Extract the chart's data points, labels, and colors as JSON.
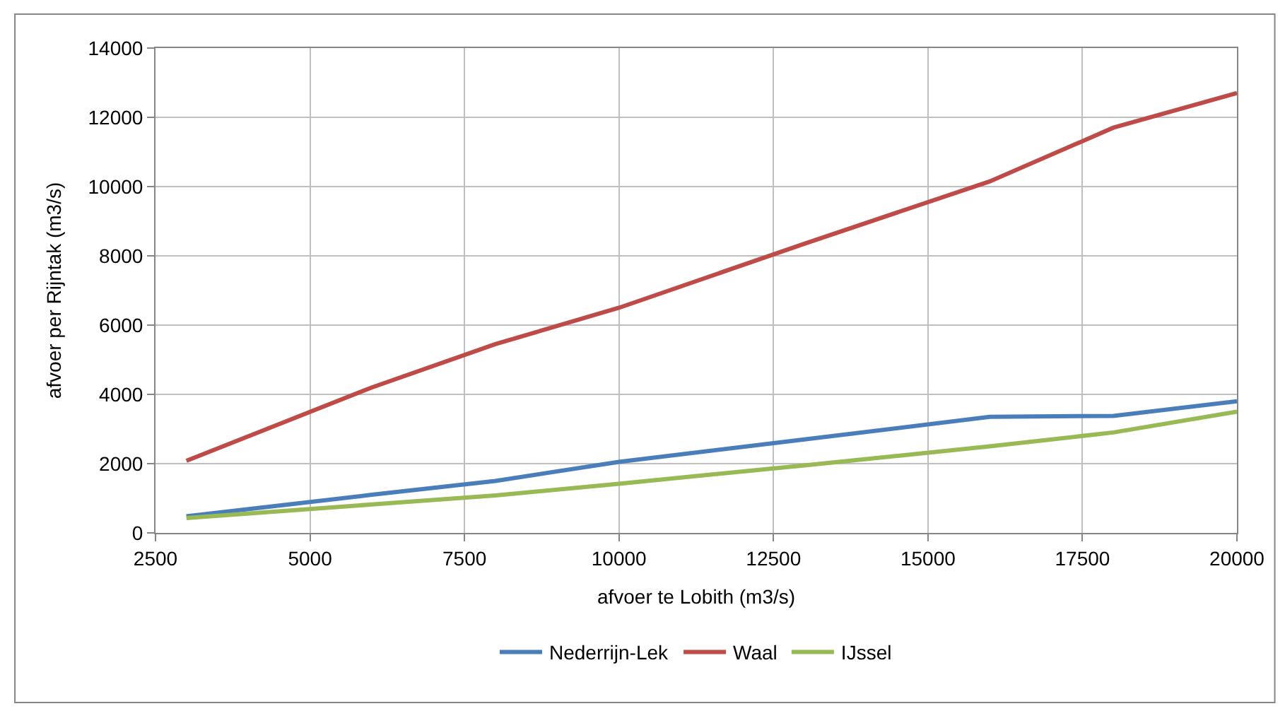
{
  "chart_data": {
    "type": "line",
    "xlabel": "afvoer te Lobith (m3/s)",
    "ylabel": "afvoer per Rijntak (m3/s)",
    "x": [
      3000,
      6000,
      8000,
      10000,
      13000,
      16000,
      18000,
      20000
    ],
    "series": [
      {
        "name": "Nederrijn-Lek",
        "color": "#4a7ebb",
        "values": [
          480,
          1100,
          1500,
          2050,
          2700,
          3350,
          3380,
          3800
        ]
      },
      {
        "name": "Waal",
        "color": "#be4b48",
        "values": [
          2080,
          4200,
          5450,
          6500,
          8350,
          10150,
          11700,
          12700
        ]
      },
      {
        "name": "IJssel",
        "color": "#98b954",
        "values": [
          430,
          820,
          1080,
          1420,
          1950,
          2500,
          2900,
          3500
        ]
      }
    ],
    "xlim": [
      2500,
      20000
    ],
    "xticks": [
      2500,
      5000,
      7500,
      10000,
      12500,
      15000,
      17500,
      20000
    ],
    "ylim": [
      0,
      14000
    ],
    "yticks": [
      0,
      2000,
      4000,
      6000,
      8000,
      10000,
      12000,
      14000
    ],
    "grid": true,
    "legend": "bottom",
    "marker": "none",
    "line_style": "solid"
  }
}
